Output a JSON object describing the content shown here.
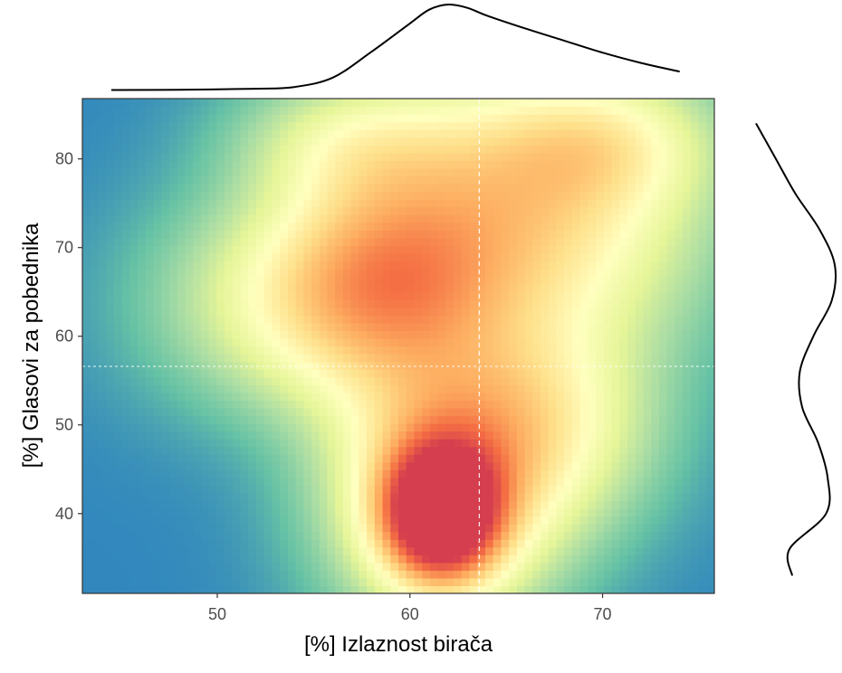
{
  "chart_data": {
    "type": "heatmap",
    "subtype": "2d-density-with-marginal-densities",
    "title": "",
    "xlabel": "[%] Izlaznost birača",
    "ylabel": "[%] Glasovi za pobednika",
    "xlim": [
      43,
      75.8
    ],
    "ylim": [
      31,
      86.8
    ],
    "x_ticks": [
      50,
      60,
      70
    ],
    "y_ticks": [
      40,
      50,
      60,
      70,
      80
    ],
    "x_tick_labels": [
      "50",
      "60",
      "70"
    ],
    "y_tick_labels": [
      "40",
      "50",
      "60",
      "70",
      "80"
    ],
    "grid": false,
    "legend": "none",
    "color_scale": [
      "#3288bd",
      "#66c2a5",
      "#abdda4",
      "#e6f598",
      "#ffffbf",
      "#fee08b",
      "#fdae61",
      "#f46d43",
      "#d53e4f"
    ],
    "reference_lines": {
      "vertical_x": 63.6,
      "horizontal_y": 56.6,
      "style": "dashed",
      "color": "#ffffff"
    },
    "density_peaks": [
      {
        "x": 61.6,
        "y": 40.0,
        "level": "max"
      },
      {
        "x": 66.5,
        "y": 74.0,
        "level": "medium"
      },
      {
        "x": 58.5,
        "y": 68.0,
        "level": "medium"
      }
    ],
    "marginal_x": {
      "x": [
        44.5,
        48,
        52,
        54,
        56,
        58,
        60,
        61,
        62,
        63,
        64,
        66,
        68,
        70,
        72,
        74
      ],
      "density": [
        0.005,
        0.008,
        0.02,
        0.04,
        0.15,
        0.45,
        0.78,
        0.94,
        1.0,
        0.96,
        0.87,
        0.72,
        0.58,
        0.44,
        0.32,
        0.22
      ]
    },
    "marginal_y": {
      "y": [
        33,
        36,
        40,
        44,
        48,
        52,
        56,
        60,
        64,
        68,
        72,
        76,
        80,
        84
      ],
      "density": [
        0.0,
        0.42,
        0.88,
        0.9,
        0.78,
        0.58,
        0.55,
        0.72,
        0.95,
        0.99,
        0.8,
        0.5,
        0.25,
        0.0
      ]
    }
  }
}
